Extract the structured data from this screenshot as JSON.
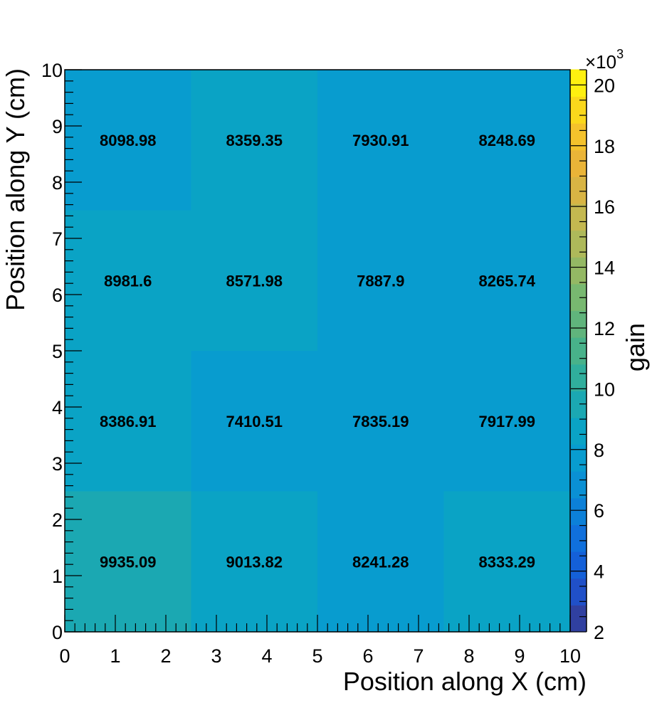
{
  "chart_data": {
    "type": "heatmap",
    "title": "",
    "xlabel": "Position along X (cm)",
    "ylabel": "Position along Y (cm)",
    "zlabel": "gain",
    "z_exponent_label": "×10",
    "z_exponent_power": "3",
    "xlim": [
      0,
      10
    ],
    "ylim": [
      0,
      10
    ],
    "zlim": [
      2,
      20.5
    ],
    "x_ticks": [
      "0",
      "1",
      "2",
      "3",
      "4",
      "5",
      "6",
      "7",
      "8",
      "9",
      "10"
    ],
    "y_ticks": [
      "0",
      "1",
      "2",
      "3",
      "4",
      "5",
      "6",
      "7",
      "8",
      "9",
      "10"
    ],
    "z_ticks": [
      "2",
      "4",
      "6",
      "8",
      "10",
      "12",
      "14",
      "16",
      "18",
      "20"
    ],
    "x_bin_edges": [
      0,
      2.5,
      5,
      7.5,
      10
    ],
    "y_bin_edges": [
      0,
      2.5,
      5,
      7.5,
      10
    ],
    "cells": [
      {
        "x": 1.25,
        "y": 1.25,
        "value": 9935.09,
        "label": "9935.09",
        "color": "#1ba8b2"
      },
      {
        "x": 3.75,
        "y": 1.25,
        "value": 9013.82,
        "label": "9013.82",
        "color": "#0aa3c5"
      },
      {
        "x": 6.25,
        "y": 1.25,
        "value": 8241.28,
        "label": "8241.28",
        "color": "#089ccf"
      },
      {
        "x": 8.75,
        "y": 1.25,
        "value": 8333.29,
        "label": "8333.29",
        "color": "#0aa3c5"
      },
      {
        "x": 1.25,
        "y": 3.75,
        "value": 8386.91,
        "label": "8386.91",
        "color": "#0aa3c5"
      },
      {
        "x": 3.75,
        "y": 3.75,
        "value": 7410.51,
        "label": "7410.51",
        "color": "#089ccf"
      },
      {
        "x": 6.25,
        "y": 3.75,
        "value": 7835.19,
        "label": "7835.19",
        "color": "#089ccf"
      },
      {
        "x": 8.75,
        "y": 3.75,
        "value": 7917.99,
        "label": "7917.99",
        "color": "#089ccf"
      },
      {
        "x": 1.25,
        "y": 6.25,
        "value": 8981.6,
        "label": "8981.6",
        "color": "#0aa3c5"
      },
      {
        "x": 3.75,
        "y": 6.25,
        "value": 8571.98,
        "label": "8571.98",
        "color": "#0aa3c5"
      },
      {
        "x": 6.25,
        "y": 6.25,
        "value": 7887.9,
        "label": "7887.9",
        "color": "#089ccf"
      },
      {
        "x": 8.75,
        "y": 6.25,
        "value": 8265.74,
        "label": "8265.74",
        "color": "#089ccf"
      },
      {
        "x": 1.25,
        "y": 8.75,
        "value": 8098.98,
        "label": "8098.98",
        "color": "#089ccf"
      },
      {
        "x": 3.75,
        "y": 8.75,
        "value": 8359.35,
        "label": "8359.35",
        "color": "#0aa3c5"
      },
      {
        "x": 6.25,
        "y": 8.75,
        "value": 7930.91,
        "label": "7930.91",
        "color": "#089ccf"
      },
      {
        "x": 8.75,
        "y": 8.75,
        "value": 8248.69,
        "label": "8248.69",
        "color": "#089ccf"
      }
    ],
    "palette": [
      "#3040a0",
      "#2050c8",
      "#1460d8",
      "#1070dc",
      "#0c80d8",
      "#0a90d4",
      "#089ccf",
      "#0aa3c5",
      "#1ba8b2",
      "#30ae9c",
      "#48b28a",
      "#60b47c",
      "#78b870",
      "#94b864",
      "#aeb95a",
      "#c4b850",
      "#d8b444",
      "#eab438",
      "#f4c22c",
      "#fad81c",
      "#fef010"
    ],
    "grid": false,
    "legend": "colorbar-right"
  }
}
